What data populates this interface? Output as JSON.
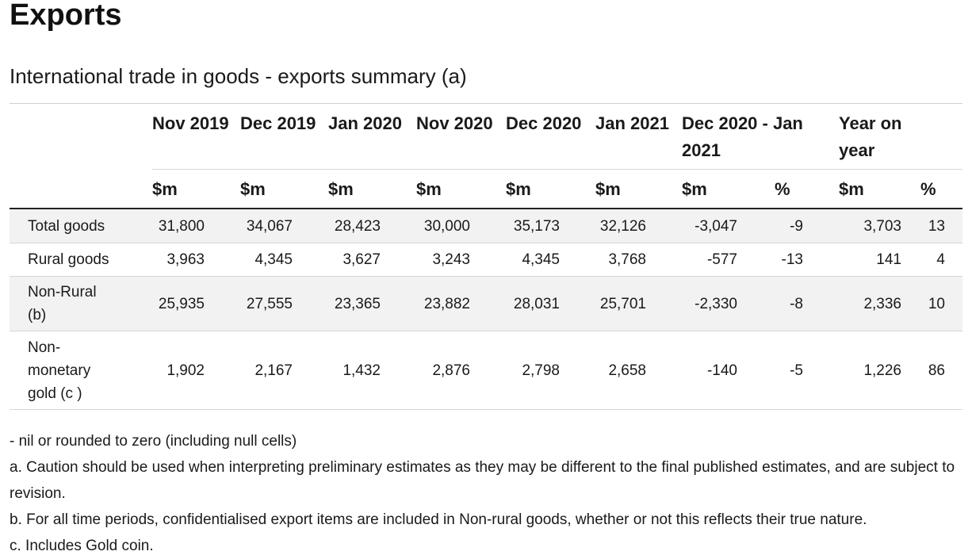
{
  "page": {
    "title": "Exports",
    "caption": "International trade in goods - exports summary (a)"
  },
  "table": {
    "header_dates": {
      "c1": "Nov 2019",
      "c2": "Dec 2019",
      "c3": "Jan 2020",
      "c4": "Nov 2020",
      "c5": "Dec 2020",
      "c6": "Jan 2021",
      "change_month": "Dec 2020 - Jan 2021",
      "change_year": "Year on year"
    },
    "header_units": [
      "$m",
      "$m",
      "$m",
      "$m",
      "$m",
      "$m",
      "$m",
      "%",
      "$m",
      "%"
    ],
    "rows": [
      {
        "label": "Total goods",
        "values": [
          "31,800",
          "34,067",
          "28,423",
          "30,000",
          "35,173",
          "32,126",
          "-3,047",
          "-9",
          "3,703",
          "13"
        ]
      },
      {
        "label": "Rural goods",
        "values": [
          "3,963",
          "4,345",
          "3,627",
          "3,243",
          "4,345",
          "3,768",
          "-577",
          "-13",
          "141",
          "4"
        ]
      },
      {
        "label": "Non-Rural (b)",
        "values": [
          "25,935",
          "27,555",
          "23,365",
          "23,882",
          "28,031",
          "25,701",
          "-2,330",
          "-8",
          "2,336",
          "10"
        ]
      },
      {
        "label": "Non-monetary gold (c )",
        "values": [
          "1,902",
          "2,167",
          "1,432",
          "2,876",
          "2,798",
          "2,658",
          "-140",
          "-5",
          "1,226",
          "86"
        ]
      }
    ]
  },
  "footnotes": {
    "nil": "- nil or rounded to zero (including null cells)",
    "a": "a. Caution should be used when interpreting preliminary estimates as they may be different to the final published estimates, and are subject to revision.",
    "b": "b. For all time periods, confidentialised export items are included in Non-rural goods, whether or not this reflects their true nature.",
    "c": "c. Includes Gold coin."
  }
}
